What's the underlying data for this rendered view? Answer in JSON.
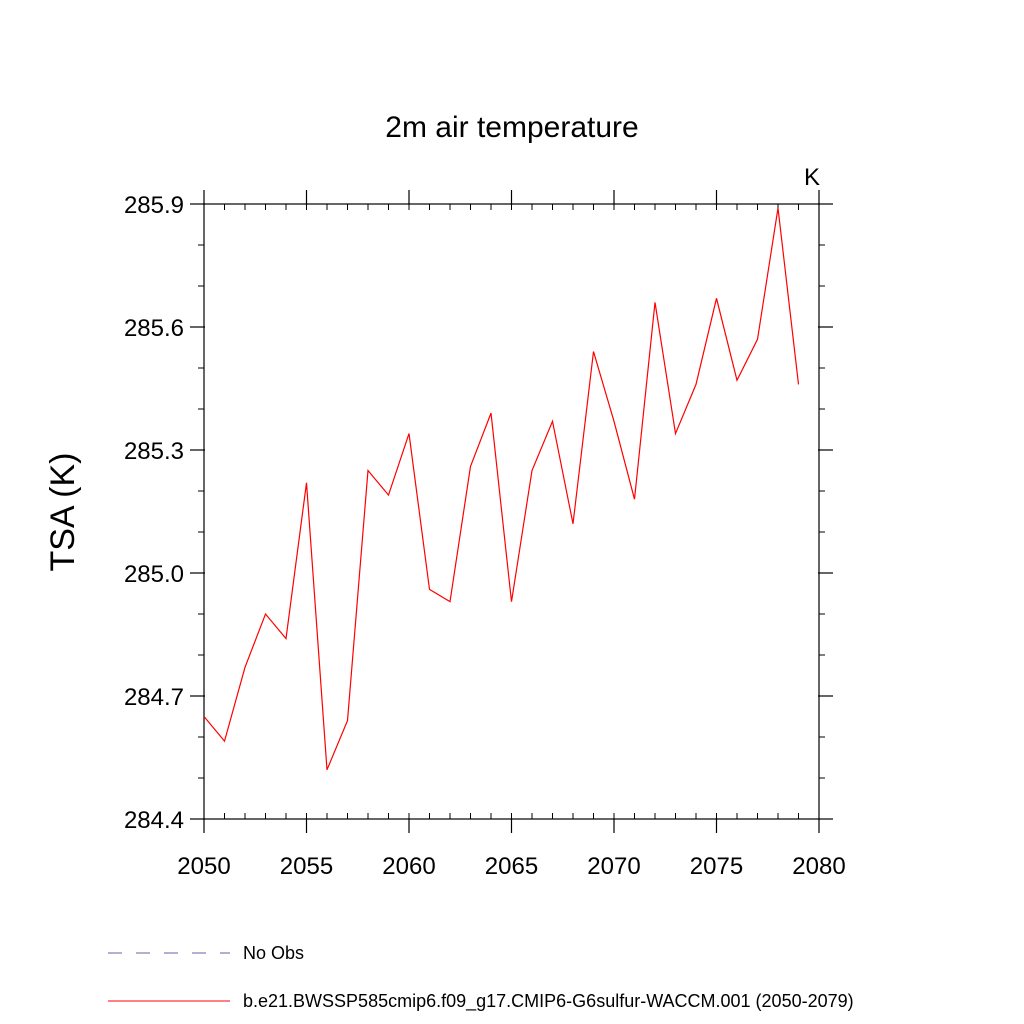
{
  "chart_data": {
    "type": "line",
    "title": "2m air temperature",
    "xlabel": "",
    "ylabel": "TSA  (K)",
    "unit_label": "K",
    "xlim": [
      2050,
      2080
    ],
    "ylim": [
      284.4,
      285.9
    ],
    "x_ticks": [
      "2050",
      "2055",
      "2060",
      "2065",
      "2070",
      "2075",
      "2080"
    ],
    "y_ticks": [
      "284.4",
      "284.7",
      "285.0",
      "285.3",
      "285.6",
      "285.9"
    ],
    "x_minor_step": 1,
    "y_minor_step": 0.1,
    "grid": false,
    "legend_placement": "bottom",
    "series": [
      {
        "name": "b.e21.BWSSP585cmip6.f09_g17.CMIP6-G6sulfur-WACCM.001 (2050-2079)",
        "color": "#ff0000",
        "style": "solid",
        "x": [
          2050,
          2051,
          2052,
          2053,
          2054,
          2055,
          2056,
          2057,
          2058,
          2059,
          2060,
          2061,
          2062,
          2063,
          2064,
          2065,
          2066,
          2067,
          2068,
          2069,
          2070,
          2071,
          2072,
          2073,
          2074,
          2075,
          2076,
          2077,
          2078,
          2079
        ],
        "values": [
          284.65,
          284.59,
          284.77,
          284.9,
          284.84,
          285.22,
          284.52,
          284.64,
          285.25,
          285.19,
          285.34,
          284.96,
          284.93,
          285.26,
          285.39,
          284.93,
          285.25,
          285.37,
          285.12,
          285.54,
          285.37,
          285.18,
          285.66,
          285.34,
          285.46,
          285.67,
          285.47,
          285.57,
          285.89,
          285.46
        ]
      }
    ],
    "legend": [
      {
        "label": "No Obs",
        "color": "#6b5fa8",
        "style": "dashed"
      },
      {
        "label": "b.e21.BWSSP585cmip6.f09_g17.CMIP6-G6sulfur-WACCM.001 (2050-2079)",
        "color": "#ff0000",
        "style": "solid"
      }
    ]
  }
}
